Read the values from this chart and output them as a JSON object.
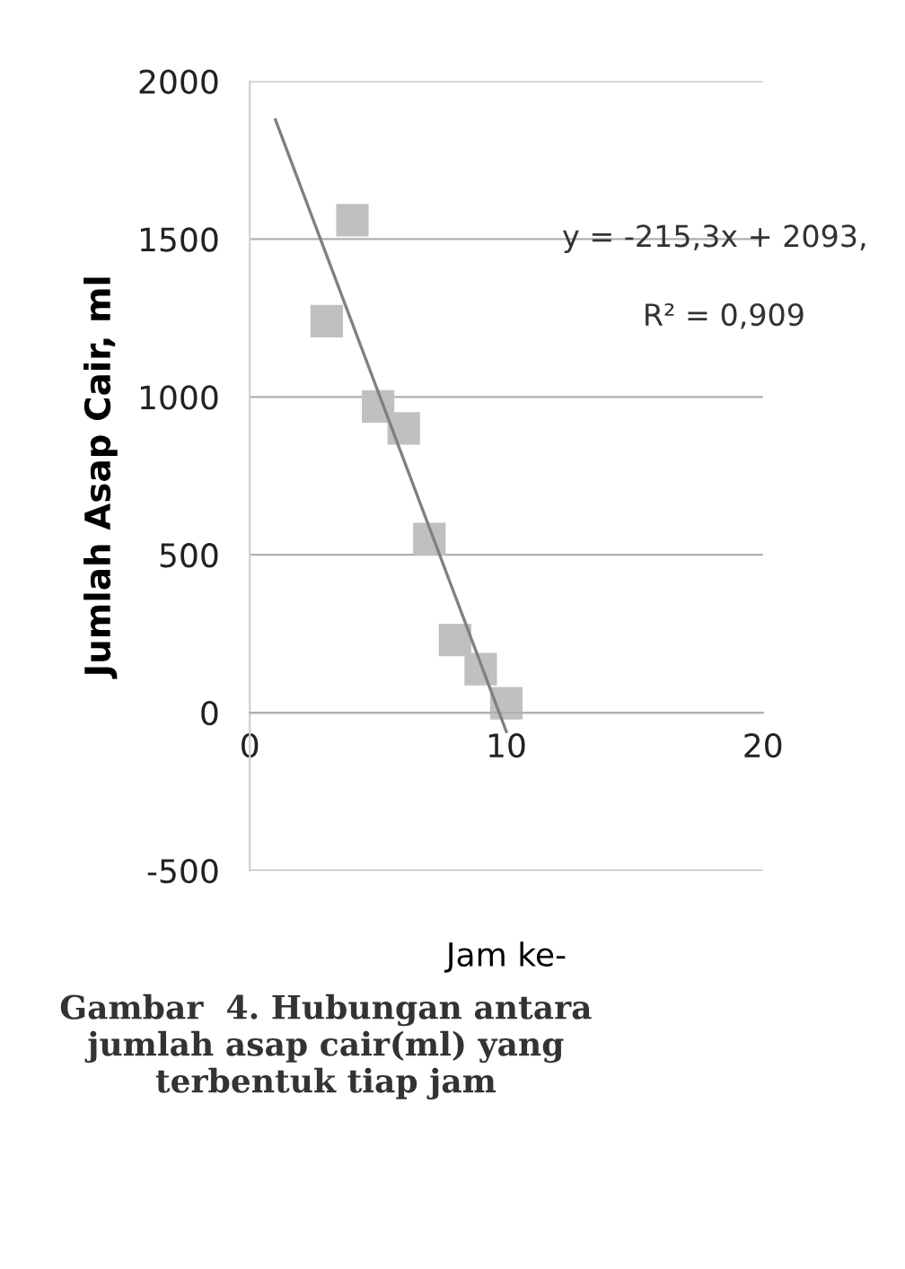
{
  "chart_data": {
    "type": "scatter",
    "xlabel": "Jam ke-",
    "ylabel": "Jumlah Asap Cair, ml",
    "series": [
      {
        "color": "#c0c0c0",
        "marker": "square",
        "x": [
          3,
          4,
          5,
          6,
          7,
          8,
          9,
          10
        ],
        "values": [
          1240,
          1560,
          970,
          900,
          550,
          230,
          138,
          30
        ]
      },
      {
        "type": "line",
        "color": "#808080",
        "marker": "none",
        "line_style": "solid",
        "x": [
          1,
          10
        ],
        "values": [
          1878,
          -60
        ]
      }
    ],
    "xlim": [
      0,
      20
    ],
    "xticks": [
      0,
      10,
      20
    ],
    "ylim": [
      -500,
      2000
    ],
    "yticks": [
      -500,
      0,
      500,
      1000,
      1500,
      2000
    ],
    "grid": "y",
    "legend": false,
    "annotations": [
      "y = -215,3x + 2093,",
      "R² = 0,909",
      "Gambar  4. Hubungan antara\njumlah asap cair(ml) yang\nterbentuk tiap jam"
    ]
  }
}
